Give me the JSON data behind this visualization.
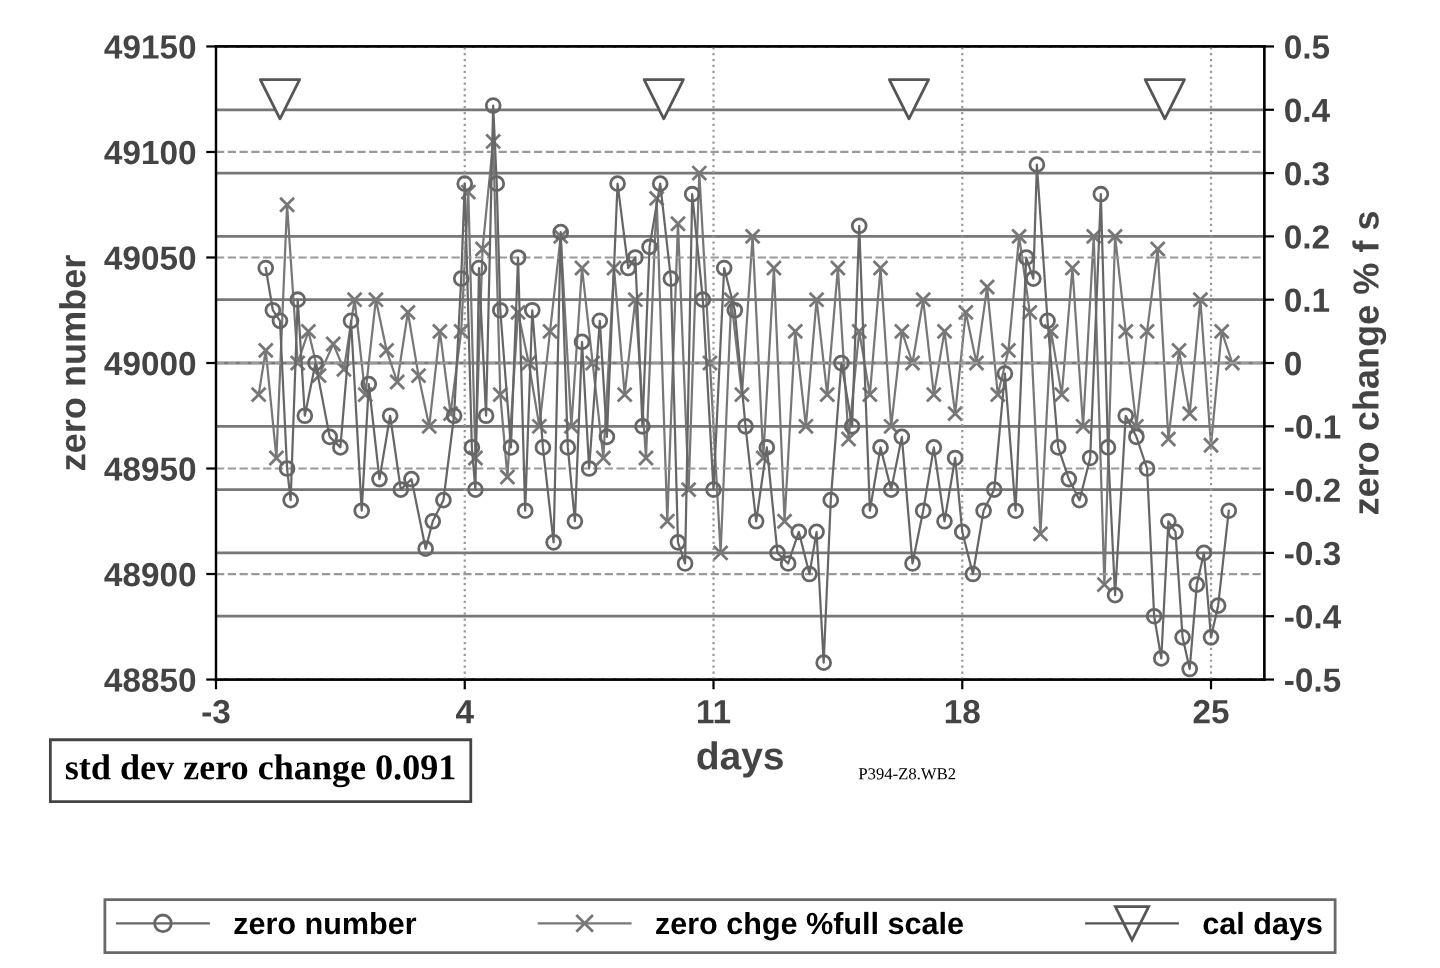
{
  "chart_data": {
    "type": "line",
    "xlabel": "days",
    "ylabel": "zero number",
    "y2label": "zero change % f s",
    "xlim": [
      -3,
      26.5
    ],
    "xticks": [
      -3,
      4,
      11,
      18,
      25
    ],
    "ylim": [
      48850,
      49150
    ],
    "yticks": [
      48850,
      48900,
      48950,
      49000,
      49050,
      49100,
      49150
    ],
    "y2lim": [
      -0.5,
      0.5
    ],
    "y2ticks": [
      {
        "value": -0.5,
        "label": "-0.5"
      },
      {
        "value": -0.4,
        "label": "-0.4"
      },
      {
        "value": -0.3,
        "label": "-0.3"
      },
      {
        "value": -0.2,
        "label": "-0.2"
      },
      {
        "value": -0.1,
        "label": "-0.1"
      },
      0,
      0.1,
      0.2,
      0.3,
      0.4,
      0.5
    ],
    "grid": true,
    "legend": "bottom",
    "annotations": [
      "std dev zero change 0.091",
      "P394-Z8.WB2"
    ],
    "series": [
      {
        "name": "zero number",
        "marker": "circle",
        "color": "#666666",
        "x": [
          -1.6,
          -1.4,
          -1.2,
          -1.0,
          -0.9,
          -0.7,
          -0.5,
          -0.2,
          0.2,
          0.5,
          0.8,
          1.1,
          1.3,
          1.6,
          1.9,
          2.2,
          2.5,
          2.9,
          3.1,
          3.4,
          3.7,
          3.9,
          4.0,
          4.2,
          4.3,
          4.4,
          4.6,
          4.8,
          4.9,
          5.0,
          5.3,
          5.5,
          5.7,
          5.9,
          6.2,
          6.5,
          6.7,
          6.9,
          7.1,
          7.3,
          7.5,
          7.8,
          8.0,
          8.3,
          8.6,
          8.8,
          9.0,
          9.2,
          9.5,
          9.8,
          10.0,
          10.2,
          10.4,
          10.7,
          11.0,
          11.3,
          11.6,
          11.9,
          12.2,
          12.5,
          12.8,
          13.1,
          13.4,
          13.7,
          13.9,
          14.1,
          14.3,
          14.6,
          14.9,
          15.1,
          15.4,
          15.7,
          16.0,
          16.3,
          16.6,
          16.9,
          17.2,
          17.5,
          17.8,
          18.0,
          18.3,
          18.6,
          18.9,
          19.2,
          19.5,
          19.8,
          20.0,
          20.1,
          20.4,
          20.7,
          21.0,
          21.3,
          21.6,
          21.9,
          22.1,
          22.3,
          22.6,
          22.9,
          23.2,
          23.4,
          23.6,
          23.8,
          24.0,
          24.2,
          24.4,
          24.6,
          24.8,
          25.0,
          25.2,
          25.5
        ],
        "values": [
          49045,
          49025,
          49020,
          48950,
          48935,
          49030,
          48975,
          49000,
          48965,
          48960,
          49020,
          48930,
          48990,
          48945,
          48975,
          48940,
          48945,
          48912,
          48925,
          48935,
          48975,
          49040,
          49085,
          48960,
          48940,
          49045,
          48975,
          49122,
          49085,
          49025,
          48960,
          49050,
          48930,
          49025,
          48960,
          48915,
          49062,
          48960,
          48925,
          49010,
          48950,
          49020,
          48965,
          49085,
          49045,
          49050,
          48970,
          49055,
          49085,
          49040,
          48915,
          48905,
          49080,
          49030,
          48940,
          49045,
          49025,
          48970,
          48925,
          48960,
          48910,
          48905,
          48920,
          48900,
          48920,
          48858,
          48935,
          49000,
          48970,
          49065,
          48930,
          48960,
          48940,
          48965,
          48905,
          48930,
          48960,
          48925,
          48955,
          48920,
          48900,
          48930,
          48940,
          48995,
          48930,
          49050,
          49040,
          49094,
          49020,
          48960,
          48945,
          48935,
          48955,
          49080,
          48960,
          48890,
          48975,
          48965,
          48950,
          48880,
          48860,
          48925,
          48920,
          48870,
          48855,
          48895,
          48910,
          48870,
          48885,
          48930
        ]
      },
      {
        "name": "zero chge %full scale",
        "marker": "cross",
        "color": "#777777",
        "axis": "y2",
        "x": [
          -1.8,
          -1.6,
          -1.3,
          -1.0,
          -0.7,
          -0.4,
          -0.1,
          0.3,
          0.6,
          0.9,
          1.2,
          1.5,
          1.8,
          2.1,
          2.4,
          2.7,
          3.0,
          3.3,
          3.6,
          3.9,
          4.1,
          4.3,
          4.5,
          4.8,
          5.0,
          5.2,
          5.5,
          5.8,
          6.1,
          6.4,
          6.7,
          7.0,
          7.3,
          7.6,
          7.9,
          8.2,
          8.5,
          8.8,
          9.1,
          9.4,
          9.7,
          10.0,
          10.3,
          10.6,
          10.9,
          11.2,
          11.5,
          11.8,
          12.1,
          12.4,
          12.7,
          13.0,
          13.3,
          13.6,
          13.9,
          14.2,
          14.5,
          14.8,
          15.1,
          15.4,
          15.7,
          16.0,
          16.3,
          16.6,
          16.9,
          17.2,
          17.5,
          17.8,
          18.1,
          18.4,
          18.7,
          19.0,
          19.3,
          19.6,
          19.9,
          20.2,
          20.5,
          20.8,
          21.1,
          21.4,
          21.7,
          22.0,
          22.3,
          22.6,
          22.9,
          23.2,
          23.5,
          23.8,
          24.1,
          24.4,
          24.7,
          25.0,
          25.3,
          25.6
        ],
        "values": [
          -0.05,
          0.02,
          -0.15,
          0.25,
          0.0,
          0.05,
          -0.02,
          0.03,
          -0.01,
          0.1,
          -0.05,
          0.1,
          0.02,
          -0.03,
          0.08,
          -0.02,
          -0.1,
          0.05,
          -0.08,
          0.05,
          0.27,
          -0.15,
          0.18,
          0.35,
          -0.05,
          -0.18,
          0.08,
          0.0,
          -0.1,
          0.05,
          0.2,
          -0.1,
          0.15,
          0.0,
          -0.15,
          0.15,
          -0.05,
          0.1,
          -0.15,
          0.26,
          -0.25,
          0.22,
          -0.2,
          0.3,
          0.0,
          -0.3,
          0.1,
          -0.05,
          0.2,
          -0.15,
          0.15,
          -0.25,
          0.05,
          -0.1,
          0.1,
          -0.05,
          0.15,
          -0.12,
          0.05,
          -0.05,
          0.15,
          -0.1,
          0.05,
          0.0,
          0.1,
          -0.05,
          0.05,
          -0.08,
          0.08,
          0.0,
          0.12,
          -0.05,
          0.02,
          0.2,
          0.08,
          -0.27,
          0.05,
          -0.05,
          0.15,
          -0.1,
          0.2,
          -0.35,
          0.2,
          0.05,
          -0.1,
          0.05,
          0.18,
          -0.12,
          0.02,
          -0.08,
          0.1,
          -0.13,
          0.05,
          0.0
        ]
      },
      {
        "name": "cal days",
        "type": "scatter",
        "marker": "triangle",
        "color": "#555555",
        "x": [
          -1.2,
          9.6,
          16.5,
          23.7
        ],
        "values": [
          49125,
          49125,
          49125,
          49125
        ]
      }
    ]
  }
}
